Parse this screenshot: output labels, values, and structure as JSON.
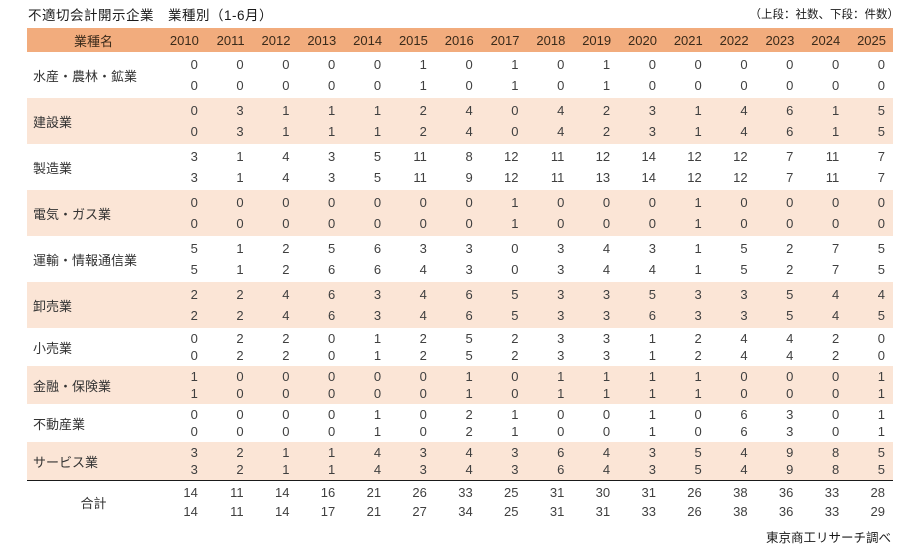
{
  "title": "不適切会計開示企業　業種別（1-6月）",
  "legend_note": "（上段：社数、下段：件数）",
  "source": "東京商工リサーチ調べ",
  "colors": {
    "header_bg": "#f2ac7d",
    "band_bg": "#fbe5d6",
    "text": "#3f3f3f",
    "total_border": "#1a1a1a"
  },
  "table": {
    "industry_header": "業種名",
    "years": [
      "2010",
      "2011",
      "2012",
      "2013",
      "2014",
      "2015",
      "2016",
      "2017",
      "2018",
      "2019",
      "2020",
      "2021",
      "2022",
      "2023",
      "2024",
      "2025"
    ],
    "rows": [
      {
        "label": "水産・農林・鉱業",
        "companies": [
          0,
          0,
          0,
          0,
          0,
          1,
          0,
          1,
          0,
          1,
          0,
          0,
          0,
          0,
          0,
          0
        ],
        "cases": [
          0,
          0,
          0,
          0,
          0,
          1,
          0,
          1,
          0,
          1,
          0,
          0,
          0,
          0,
          0,
          0
        ]
      },
      {
        "label": "建設業",
        "companies": [
          0,
          3,
          1,
          1,
          1,
          2,
          4,
          0,
          4,
          2,
          3,
          1,
          4,
          6,
          1,
          5
        ],
        "cases": [
          0,
          3,
          1,
          1,
          1,
          2,
          4,
          0,
          4,
          2,
          3,
          1,
          4,
          6,
          1,
          5
        ]
      },
      {
        "label": "製造業",
        "companies": [
          3,
          1,
          4,
          3,
          5,
          11,
          8,
          12,
          11,
          12,
          14,
          12,
          12,
          7,
          11,
          7
        ],
        "cases": [
          3,
          1,
          4,
          3,
          5,
          11,
          9,
          12,
          11,
          13,
          14,
          12,
          12,
          7,
          11,
          7
        ]
      },
      {
        "label": "電気・ガス業",
        "companies": [
          0,
          0,
          0,
          0,
          0,
          0,
          0,
          1,
          0,
          0,
          0,
          1,
          0,
          0,
          0,
          0
        ],
        "cases": [
          0,
          0,
          0,
          0,
          0,
          0,
          0,
          1,
          0,
          0,
          0,
          1,
          0,
          0,
          0,
          0
        ]
      },
      {
        "label": "運輸・情報通信業",
        "companies": [
          5,
          1,
          2,
          5,
          6,
          3,
          3,
          0,
          3,
          4,
          3,
          1,
          5,
          2,
          7,
          5
        ],
        "cases": [
          5,
          1,
          2,
          6,
          6,
          4,
          3,
          0,
          3,
          4,
          4,
          1,
          5,
          2,
          7,
          5
        ]
      },
      {
        "label": "卸売業",
        "companies": [
          2,
          2,
          4,
          6,
          3,
          4,
          6,
          5,
          3,
          3,
          5,
          3,
          3,
          5,
          4,
          4
        ],
        "cases": [
          2,
          2,
          4,
          6,
          3,
          4,
          6,
          5,
          3,
          3,
          6,
          3,
          3,
          5,
          4,
          5
        ]
      },
      {
        "label": "小売業",
        "companies": [
          0,
          2,
          2,
          0,
          1,
          2,
          5,
          2,
          3,
          3,
          1,
          2,
          4,
          4,
          2,
          0
        ],
        "cases": [
          0,
          2,
          2,
          0,
          1,
          2,
          5,
          2,
          3,
          3,
          1,
          2,
          4,
          4,
          2,
          0
        ]
      },
      {
        "label": "金融・保険業",
        "companies": [
          1,
          0,
          0,
          0,
          0,
          0,
          1,
          0,
          1,
          1,
          1,
          1,
          0,
          0,
          0,
          1
        ],
        "cases": [
          1,
          0,
          0,
          0,
          0,
          0,
          1,
          0,
          1,
          1,
          1,
          1,
          0,
          0,
          0,
          1
        ]
      },
      {
        "label": "不動産業",
        "companies": [
          0,
          0,
          0,
          0,
          1,
          0,
          2,
          1,
          0,
          0,
          1,
          0,
          6,
          3,
          0,
          1
        ],
        "cases": [
          0,
          0,
          0,
          0,
          1,
          0,
          2,
          1,
          0,
          0,
          1,
          0,
          6,
          3,
          0,
          1
        ]
      },
      {
        "label": "サービス業",
        "companies": [
          3,
          2,
          1,
          1,
          4,
          3,
          4,
          3,
          6,
          4,
          3,
          5,
          4,
          9,
          8,
          5
        ],
        "cases": [
          3,
          2,
          1,
          1,
          4,
          3,
          4,
          3,
          6,
          4,
          3,
          5,
          4,
          9,
          8,
          5
        ]
      }
    ],
    "total": {
      "label": "合計",
      "companies": [
        14,
        11,
        14,
        16,
        21,
        26,
        33,
        25,
        31,
        30,
        31,
        26,
        38,
        36,
        33,
        28
      ],
      "cases": [
        14,
        11,
        14,
        17,
        21,
        27,
        34,
        25,
        31,
        31,
        33,
        26,
        38,
        36,
        33,
        29
      ]
    }
  },
  "chart_data": {
    "type": "table",
    "title": "不適切会計開示企業　業種別（1-6月）",
    "note": "（上段：社数、下段：件数）",
    "source": "東京商工リサーチ調べ",
    "columns": [
      "業種名",
      "2010",
      "2011",
      "2012",
      "2013",
      "2014",
      "2015",
      "2016",
      "2017",
      "2018",
      "2019",
      "2020",
      "2021",
      "2022",
      "2023",
      "2024",
      "2025"
    ],
    "series": [
      {
        "name": "水産・農林・鉱業 社数",
        "values": [
          0,
          0,
          0,
          0,
          0,
          1,
          0,
          1,
          0,
          1,
          0,
          0,
          0,
          0,
          0,
          0
        ]
      },
      {
        "name": "水産・農林・鉱業 件数",
        "values": [
          0,
          0,
          0,
          0,
          0,
          1,
          0,
          1,
          0,
          1,
          0,
          0,
          0,
          0,
          0,
          0
        ]
      },
      {
        "name": "建設業 社数",
        "values": [
          0,
          3,
          1,
          1,
          1,
          2,
          4,
          0,
          4,
          2,
          3,
          1,
          4,
          6,
          1,
          5
        ]
      },
      {
        "name": "建設業 件数",
        "values": [
          0,
          3,
          1,
          1,
          1,
          2,
          4,
          0,
          4,
          2,
          3,
          1,
          4,
          6,
          1,
          5
        ]
      },
      {
        "name": "製造業 社数",
        "values": [
          3,
          1,
          4,
          3,
          5,
          11,
          8,
          12,
          11,
          12,
          14,
          12,
          12,
          7,
          11,
          7
        ]
      },
      {
        "name": "製造業 件数",
        "values": [
          3,
          1,
          4,
          3,
          5,
          11,
          9,
          12,
          11,
          13,
          14,
          12,
          12,
          7,
          11,
          7
        ]
      },
      {
        "name": "電気・ガス業 社数",
        "values": [
          0,
          0,
          0,
          0,
          0,
          0,
          0,
          1,
          0,
          0,
          0,
          1,
          0,
          0,
          0,
          0
        ]
      },
      {
        "name": "電気・ガス業 件数",
        "values": [
          0,
          0,
          0,
          0,
          0,
          0,
          0,
          1,
          0,
          0,
          0,
          1,
          0,
          0,
          0,
          0
        ]
      },
      {
        "name": "運輸・情報通信業 社数",
        "values": [
          5,
          1,
          2,
          5,
          6,
          3,
          3,
          0,
          3,
          4,
          3,
          1,
          5,
          2,
          7,
          5
        ]
      },
      {
        "name": "運輸・情報通信業 件数",
        "values": [
          5,
          1,
          2,
          6,
          6,
          4,
          3,
          0,
          3,
          4,
          4,
          1,
          5,
          2,
          7,
          5
        ]
      },
      {
        "name": "卸売業 社数",
        "values": [
          2,
          2,
          4,
          6,
          3,
          4,
          6,
          5,
          3,
          3,
          5,
          3,
          3,
          5,
          4,
          4
        ]
      },
      {
        "name": "卸売業 件数",
        "values": [
          2,
          2,
          4,
          6,
          3,
          4,
          6,
          5,
          3,
          3,
          6,
          3,
          3,
          5,
          4,
          5
        ]
      },
      {
        "name": "小売業 社数",
        "values": [
          0,
          2,
          2,
          0,
          1,
          2,
          5,
          2,
          3,
          3,
          1,
          2,
          4,
          4,
          2,
          0
        ]
      },
      {
        "name": "小売業 件数",
        "values": [
          0,
          2,
          2,
          0,
          1,
          2,
          5,
          2,
          3,
          3,
          1,
          2,
          4,
          4,
          2,
          0
        ]
      },
      {
        "name": "金融・保険業 社数",
        "values": [
          1,
          0,
          0,
          0,
          0,
          0,
          1,
          0,
          1,
          1,
          1,
          1,
          0,
          0,
          0,
          1
        ]
      },
      {
        "name": "金融・保険業 件数",
        "values": [
          1,
          0,
          0,
          0,
          0,
          0,
          1,
          0,
          1,
          1,
          1,
          1,
          0,
          0,
          0,
          1
        ]
      },
      {
        "name": "不動産業 社数",
        "values": [
          0,
          0,
          0,
          0,
          1,
          0,
          2,
          1,
          0,
          0,
          1,
          0,
          6,
          3,
          0,
          1
        ]
      },
      {
        "name": "不動産業 件数",
        "values": [
          0,
          0,
          0,
          0,
          1,
          0,
          2,
          1,
          0,
          0,
          1,
          0,
          6,
          3,
          0,
          1
        ]
      },
      {
        "name": "サービス業 社数",
        "values": [
          3,
          2,
          1,
          1,
          4,
          3,
          4,
          3,
          6,
          4,
          3,
          5,
          4,
          9,
          8,
          5
        ]
      },
      {
        "name": "サービス業 件数",
        "values": [
          3,
          2,
          1,
          1,
          4,
          3,
          4,
          3,
          6,
          4,
          3,
          5,
          4,
          9,
          8,
          5
        ]
      },
      {
        "name": "合計 社数",
        "values": [
          14,
          11,
          14,
          16,
          21,
          26,
          33,
          25,
          31,
          30,
          31,
          26,
          38,
          36,
          33,
          28
        ]
      },
      {
        "name": "合計 件数",
        "values": [
          14,
          11,
          14,
          17,
          21,
          27,
          34,
          25,
          31,
          31,
          33,
          26,
          38,
          36,
          33,
          29
        ]
      }
    ]
  }
}
